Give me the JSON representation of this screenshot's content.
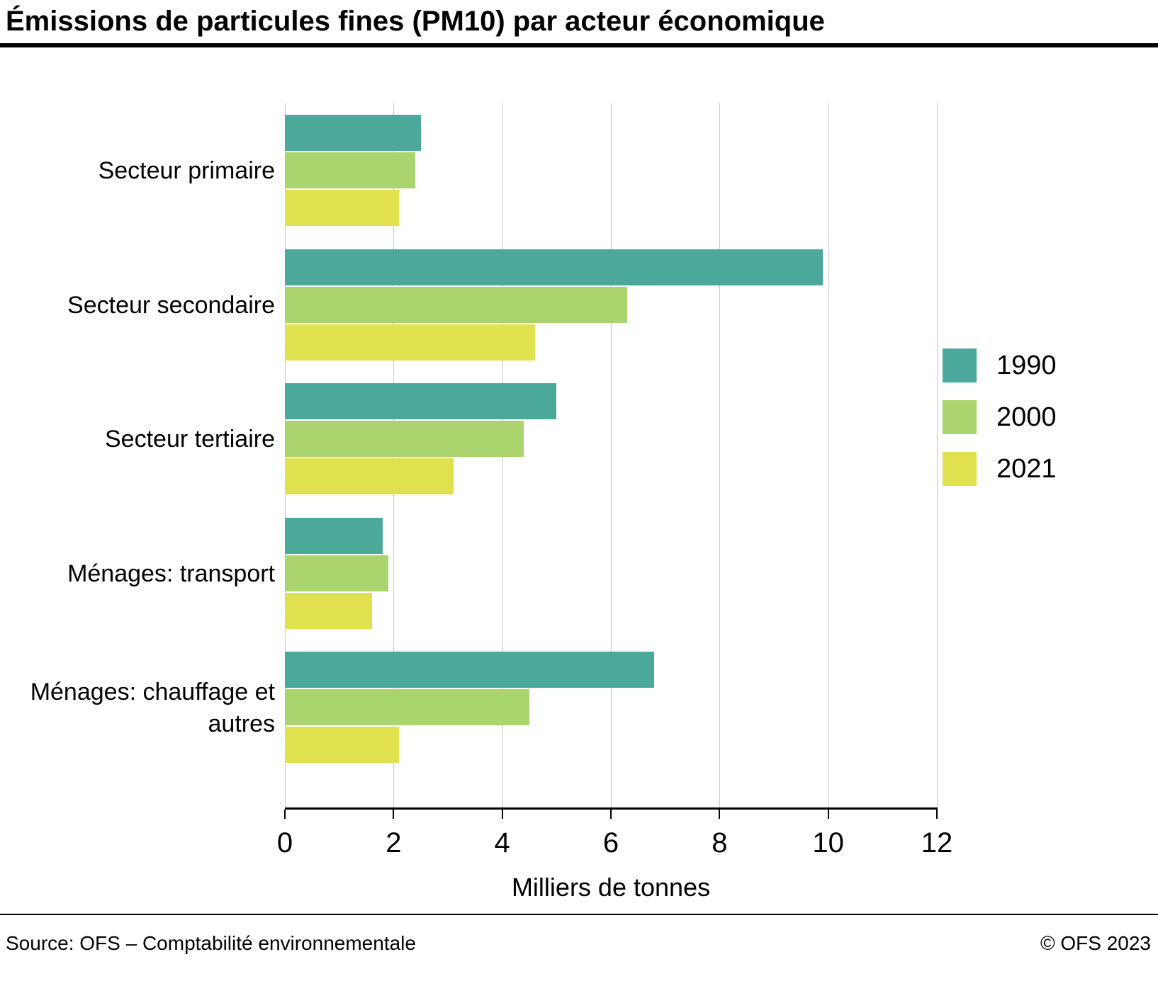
{
  "title": "Émissions de particules fines (PM10) par acteur économique",
  "footer": {
    "source": "Source: OFS – Comptabilité environnementale",
    "copyright": "© OFS 2023"
  },
  "chart_data": {
    "type": "bar",
    "orientation": "horizontal",
    "title": "Émissions de particules fines (PM10) par acteur économique",
    "categories": [
      "Secteur primaire",
      "Secteur secondaire",
      "Secteur tertiaire",
      "Ménages: transport",
      "Ménages: chauffage et autres"
    ],
    "series": [
      {
        "name": "1990",
        "color": "#4aa99b",
        "values": [
          2.5,
          9.9,
          5.0,
          1.8,
          6.8
        ]
      },
      {
        "name": "2000",
        "color": "#a9d46e",
        "values": [
          2.4,
          6.3,
          4.4,
          1.9,
          4.5
        ]
      },
      {
        "name": "2021",
        "color": "#e0e14f",
        "values": [
          2.1,
          4.6,
          3.1,
          1.6,
          2.1
        ]
      }
    ],
    "xlabel": "Milliers de tonnes",
    "xlim": [
      0,
      12
    ],
    "xticks": [
      0,
      2,
      4,
      6,
      8,
      10,
      12
    ],
    "grid": true,
    "gridline_color": "#c9c9c9",
    "legend_position": "right"
  }
}
